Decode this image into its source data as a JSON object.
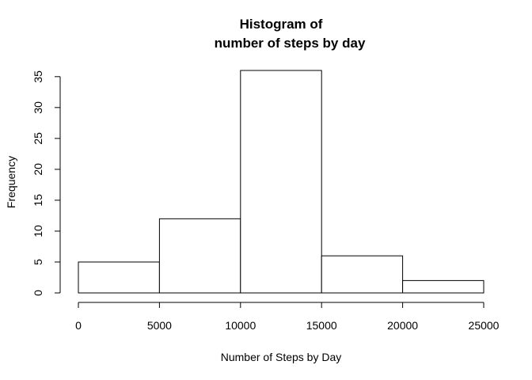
{
  "chart_data": {
    "type": "bar",
    "title_lines": [
      "Histogram of",
      "number of steps by day"
    ],
    "xlabel": "Number of Steps by Day",
    "ylabel": "Frequency",
    "bins": [
      {
        "x0": 0,
        "x1": 5000,
        "count": 5
      },
      {
        "x0": 5000,
        "x1": 10000,
        "count": 12
      },
      {
        "x0": 10000,
        "x1": 15000,
        "count": 36
      },
      {
        "x0": 15000,
        "x1": 20000,
        "count": 6
      },
      {
        "x0": 20000,
        "x1": 25000,
        "count": 2
      }
    ],
    "xlim": [
      0,
      25000
    ],
    "ylim": [
      0,
      36
    ],
    "x_ticks": [
      0,
      5000,
      10000,
      15000,
      20000,
      25000
    ],
    "x_tick_labels": [
      "0",
      "5000",
      "10000",
      "15000",
      "20000",
      "25000"
    ],
    "y_ticks": [
      0,
      5,
      10,
      15,
      20,
      25,
      30,
      35
    ],
    "y_tick_labels": [
      "0",
      "5",
      "10",
      "15",
      "20",
      "25",
      "30",
      "35"
    ],
    "grid": false,
    "legend": "none"
  }
}
